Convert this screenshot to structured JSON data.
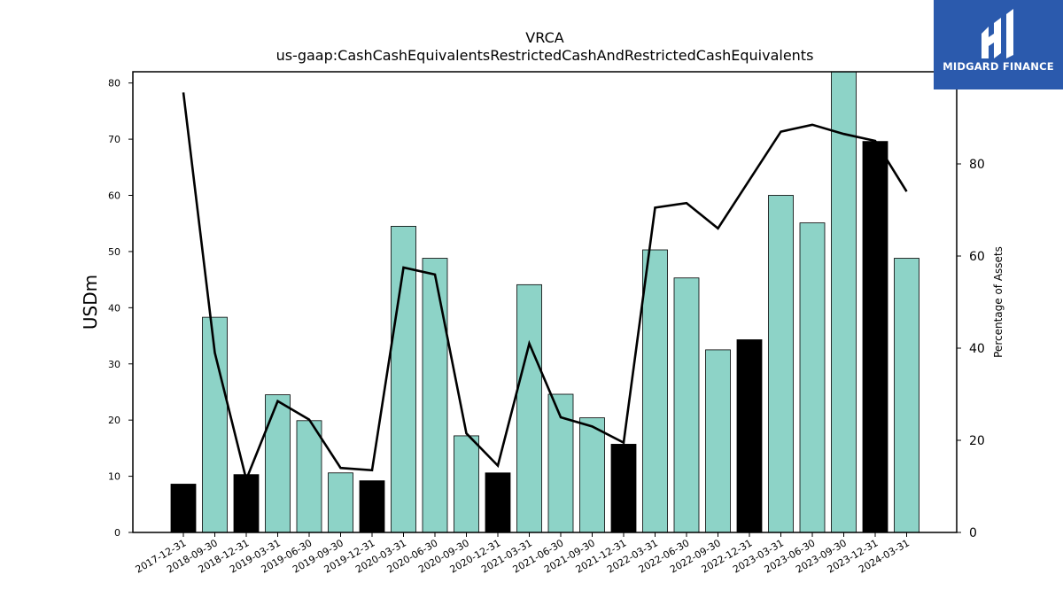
{
  "chart_data": {
    "type": "bar",
    "title": "VRCA",
    "subtitle": "us-gaap:CashCashEquivalentsRestrictedCashAndRestrictedCashEquivalents",
    "ylabel": "USDm",
    "y2label": "Percentage of Assets",
    "ylim": [
      0,
      82
    ],
    "y2lim": [
      0,
      100
    ],
    "yticks": [
      0,
      10,
      20,
      30,
      40,
      50,
      60,
      70,
      80
    ],
    "y2ticks": [
      0,
      20,
      40,
      60,
      80
    ],
    "categories": [
      "2017-12-31",
      "2018-09-30",
      "2018-12-31",
      "2019-03-31",
      "2019-06-30",
      "2019-09-30",
      "2019-12-31",
      "2020-03-31",
      "2020-06-30",
      "2020-09-30",
      "2020-12-31",
      "2021-03-31",
      "2021-06-30",
      "2021-09-30",
      "2021-12-31",
      "2022-03-31",
      "2022-06-30",
      "2022-09-30",
      "2022-12-31",
      "2023-03-31",
      "2023-06-30",
      "2023-09-30",
      "2023-12-31",
      "2024-03-31"
    ],
    "series": [
      {
        "type": "bar",
        "axis": "left",
        "values": [
          8.6,
          38.3,
          10.3,
          24.5,
          19.9,
          10.6,
          9.2,
          54.5,
          48.8,
          17.2,
          10.6,
          44.1,
          24.6,
          20.4,
          15.7,
          50.3,
          45.3,
          32.5,
          34.3,
          60.0,
          55.1,
          82.0,
          69.6,
          48.8
        ],
        "highlight": [
          true,
          false,
          true,
          false,
          false,
          false,
          true,
          false,
          false,
          false,
          true,
          false,
          false,
          false,
          true,
          false,
          false,
          false,
          true,
          false,
          false,
          false,
          true,
          false
        ]
      },
      {
        "type": "line",
        "axis": "right",
        "values": [
          95.5,
          39.0,
          11.5,
          28.5,
          24.5,
          14.0,
          13.5,
          57.5,
          56.0,
          21.5,
          14.5,
          41.0,
          25.0,
          23.0,
          19.5,
          70.5,
          71.5,
          66.0,
          76.5,
          87.0,
          88.5,
          86.5,
          85.0,
          74.0
        ]
      }
    ],
    "colors": {
      "bar": "#8dd3c7",
      "bar_highlight": "#000000",
      "line": "#000000"
    }
  },
  "logo": {
    "text": "MIDGARD FINANCE",
    "background": "#2b5aad"
  }
}
